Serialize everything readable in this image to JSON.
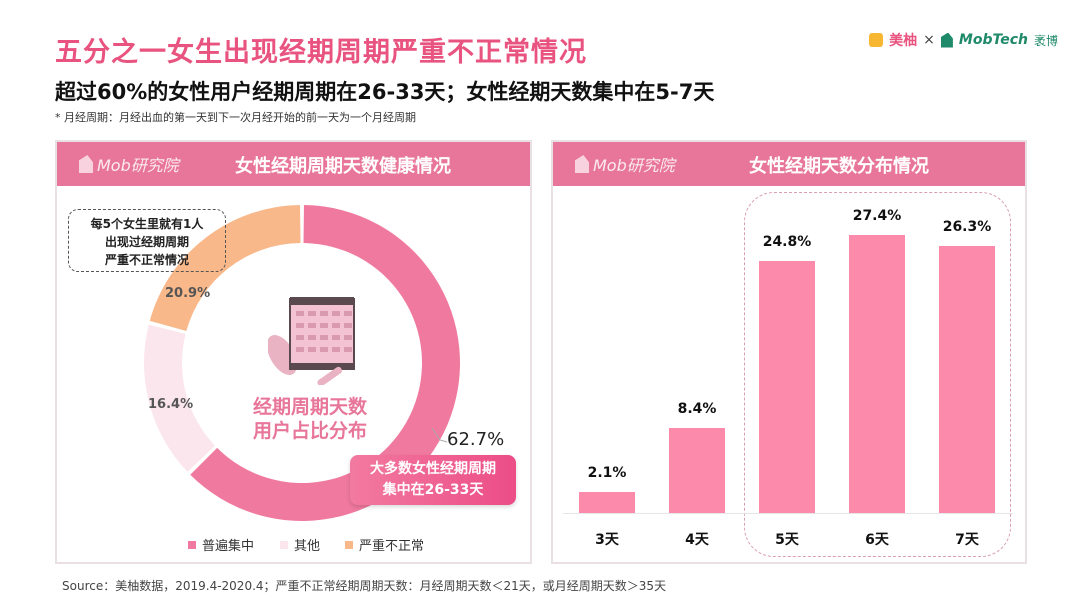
{
  "header": {
    "title": "五分之一女生出现经期周期严重不正常情况",
    "subtitle": "超过60%的女性用户经期周期在26-33天；女性经期天数集中在5-7天",
    "note": "* 月经周期：月经出血的第一天到下一次月经开始的前一天为一个月经周期",
    "logo_meiyou": "美柚",
    "logo_x": "×",
    "logo_mobtech": "MobTech",
    "logo_mobtech_cn": "袤博"
  },
  "panel_logo": "Mob研究院",
  "colors": {
    "pink": "#f0799f",
    "light": "#fbe6ee",
    "orange": "#f9b88a",
    "bar": "#fb8aab"
  },
  "source": "Source：美柚数据，2019.4-2020.4；严重不正常经期周期天数：月经周期天数＜21天，或月经周期天数＞35天",
  "chart_data": [
    {
      "type": "pie",
      "title": "女性经期周期天数健康情况",
      "center_text": [
        "经期周期天数",
        "用户占比分布"
      ],
      "labels": [
        "普遍集中",
        "其他",
        "严重不正常"
      ],
      "values": [
        62.7,
        16.4,
        20.9
      ],
      "value_labels": [
        "62.7%",
        "16.4%",
        "20.9%"
      ],
      "callout": [
        "每5个女生里就有1人",
        "出现过经期周期",
        "严重不正常情况"
      ],
      "annotation": [
        "大多数女性经期周期",
        "集中在26-33天"
      ],
      "legend": "bottom"
    },
    {
      "type": "bar",
      "title": "女性经期天数分布情况",
      "categories": [
        "3天",
        "4天",
        "5天",
        "6天",
        "7天"
      ],
      "values": [
        2.1,
        8.4,
        24.8,
        27.4,
        26.3
      ],
      "value_labels": [
        "2.1%",
        "8.4%",
        "24.8%",
        "27.4%",
        "26.3%"
      ],
      "ylim": [
        0,
        27.4
      ]
    }
  ]
}
